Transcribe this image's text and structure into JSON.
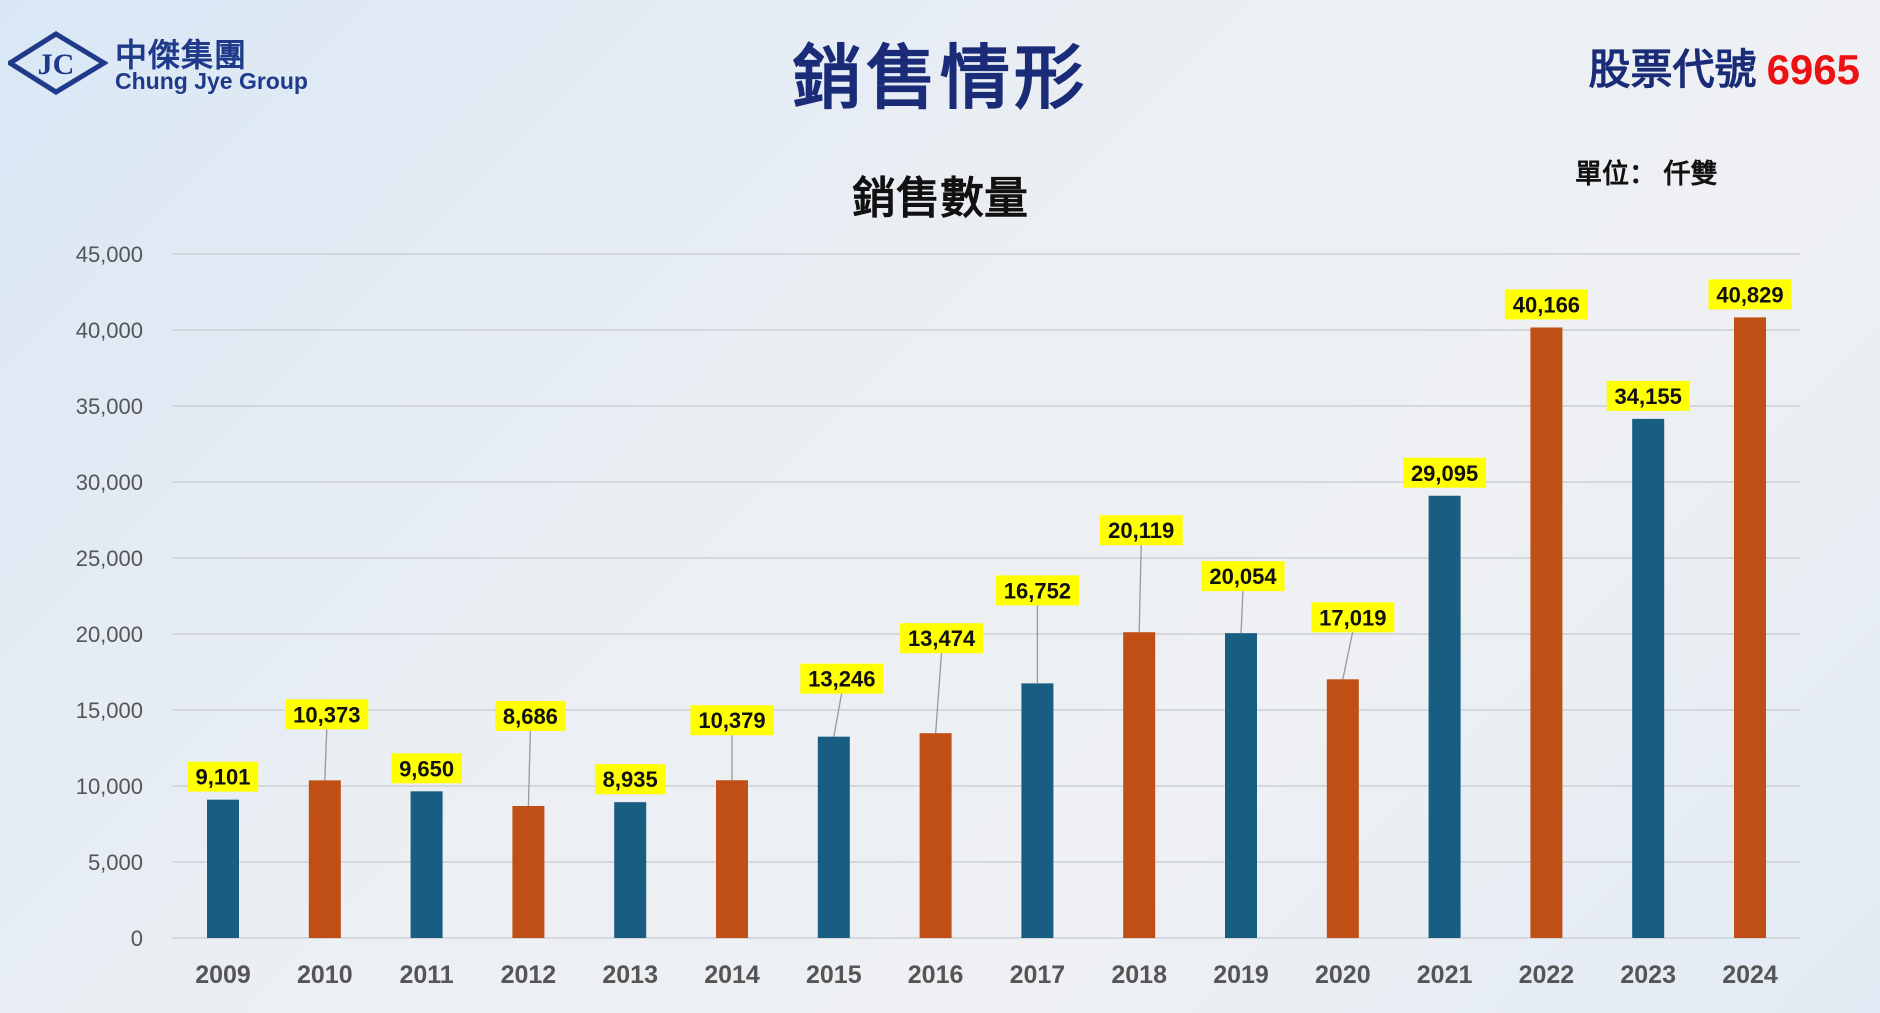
{
  "header": {
    "logo_cn": "中傑集團",
    "logo_en": "Chung Jye Group",
    "title": "銷售情形",
    "stock_label": "股票代號",
    "stock_code": "6965"
  },
  "colors": {
    "blue": "#175e82",
    "orange": "#c04f15",
    "label_bg": "#ffff00",
    "title": "#1a2b78",
    "stock_code": "#ee1111"
  },
  "chart_data": {
    "type": "bar",
    "title": "銷售數量",
    "unit": "單位： 仟雙",
    "categories": [
      "2009",
      "2010",
      "2011",
      "2012",
      "2013",
      "2014",
      "2015",
      "2016",
      "2017",
      "2018",
      "2019",
      "2020",
      "2021",
      "2022",
      "2023",
      "2024"
    ],
    "values": [
      9101,
      10373,
      9650,
      8686,
      8935,
      10379,
      13246,
      13474,
      16752,
      20119,
      20054,
      17019,
      29095,
      40166,
      34155,
      40829
    ],
    "value_labels": [
      "9,101",
      "10,373",
      "9,650",
      "8,686",
      "8,935",
      "10,379",
      "13,246",
      "13,474",
      "16,752",
      "20,119",
      "20,054",
      "17,019",
      "29,095",
      "40,166",
      "34,155",
      "40,829"
    ],
    "bar_colors": [
      "blue",
      "orange",
      "blue",
      "orange",
      "blue",
      "orange",
      "blue",
      "orange",
      "blue",
      "orange",
      "blue",
      "orange",
      "blue",
      "orange",
      "blue",
      "orange"
    ],
    "ylim": [
      0,
      45000
    ],
    "yticks": [
      0,
      5000,
      10000,
      15000,
      20000,
      25000,
      30000,
      35000,
      40000,
      45000
    ],
    "ytick_labels": [
      "0",
      "5,000",
      "10,000",
      "15,000",
      "20,000",
      "25,000",
      "30,000",
      "35,000",
      "40,000",
      "45,000"
    ],
    "grid": true,
    "legend": "none"
  }
}
